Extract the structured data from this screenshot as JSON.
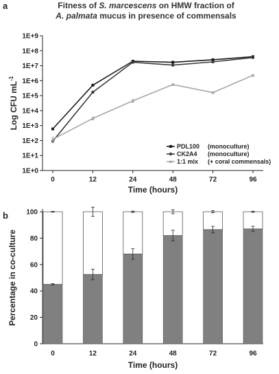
{
  "chart_data": [
    {
      "panel": "a",
      "type": "line",
      "title_lines": [
        [
          {
            "text": "Fitness of ",
            "italic": false
          },
          {
            "text": "S. marcescens",
            "italic": true
          },
          {
            "text": " on HMW fraction of",
            "italic": false
          }
        ],
        [
          {
            "text": "A. palmata",
            "italic": true
          },
          {
            "text": " mucus in presence of commensals",
            "italic": false
          }
        ]
      ],
      "xlabel": "Time (hours)",
      "ylabel": "Log CFU mL",
      "ylabel_superscript": "-1",
      "scale": "log",
      "categories": [
        "0",
        "12",
        "24",
        "48",
        "72",
        "96"
      ],
      "yticks": [
        "1E+0",
        "1E+1",
        "1E+2",
        "1E+3",
        "1E+4",
        "1E+5",
        "1E+6",
        "1E+7",
        "1E+8",
        "1E+9"
      ],
      "ylim_log10": [
        0,
        9
      ],
      "series": [
        {
          "name": "PDL100",
          "note": "(monoculture)",
          "marker": "square",
          "color": "#1a1a1a",
          "values": [
            600,
            500000,
            20000000,
            17000000,
            25000000,
            40000000
          ],
          "errors": [
            0.05,
            0.05,
            0.05,
            0.05,
            0.05,
            0.05
          ]
        },
        {
          "name": "CK2A4",
          "note": "(monoculture)",
          "marker": "circle",
          "color": "#3a3a3a",
          "values": [
            90,
            170000,
            17000000,
            11000000,
            18000000,
            35000000
          ],
          "errors": [
            0.05,
            0.05,
            0.05,
            0.05,
            0.05,
            0.05
          ]
        },
        {
          "name": "1:1 mix",
          "note": "(+ coral commensals)",
          "marker": "triangle",
          "color": "#a6a6a6",
          "values": [
            120,
            3000,
            45000,
            550000,
            160000,
            2300000
          ],
          "errors": [
            0.15,
            0.1,
            0.1,
            0.06,
            0.05,
            0.04
          ]
        }
      ],
      "legend_position": "bottom-right"
    },
    {
      "panel": "b",
      "type": "bar",
      "stacked": true,
      "xlabel": "Time (hours)",
      "ylabel": "Percentage in co-culture",
      "categories": [
        "0",
        "12",
        "24",
        "48",
        "72",
        "96"
      ],
      "yticks": [
        "0",
        "20",
        "40",
        "60",
        "80",
        "100"
      ],
      "ylim": [
        0,
        100
      ],
      "series": [
        {
          "role": "lower",
          "color": "#808080",
          "values": [
            45,
            52.5,
            68,
            82,
            86.5,
            87
          ],
          "errors": [
            0.5,
            4,
            4,
            4,
            2.5,
            2
          ]
        },
        {
          "role": "upper",
          "color": "#ffffff",
          "values": [
            55,
            47.5,
            32,
            18,
            13.5,
            13
          ],
          "errors": [
            0.3,
            3.5,
            0.5,
            1.5,
            0.8,
            0.4
          ]
        }
      ]
    }
  ]
}
